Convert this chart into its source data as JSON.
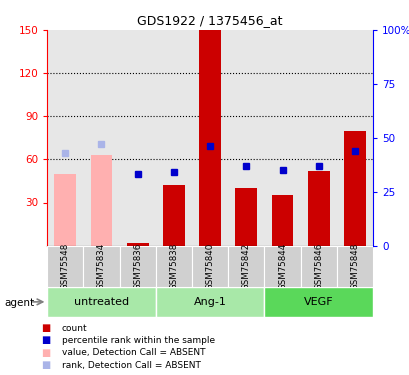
{
  "title": "GDS1922 / 1375456_at",
  "samples": [
    "GSM75548",
    "GSM75834",
    "GSM75836",
    "GSM75838",
    "GSM75840",
    "GSM75842",
    "GSM75844",
    "GSM75846",
    "GSM75848"
  ],
  "bar_values": [
    50,
    63,
    2,
    42,
    150,
    40,
    35,
    52,
    80
  ],
  "bar_absent": [
    true,
    true,
    false,
    false,
    false,
    false,
    false,
    false,
    false
  ],
  "rank_values": [
    43,
    47,
    33,
    34,
    46,
    37,
    35,
    37,
    44
  ],
  "rank_absent": [
    true,
    true,
    false,
    false,
    false,
    false,
    false,
    false,
    false
  ],
  "ylim_left": [
    0,
    150
  ],
  "ylim_right": [
    0,
    100
  ],
  "yticks_left": [
    30,
    60,
    90,
    120,
    150
  ],
  "yticks_right": [
    0,
    25,
    50,
    75,
    100
  ],
  "ytick_right_labels": [
    "0",
    "25",
    "50",
    "75",
    "100%"
  ],
  "bar_color_normal": "#cc0000",
  "bar_color_absent": "#ffb0b0",
  "rank_color_normal": "#0000cc",
  "rank_color_absent": "#aab4e8",
  "sample_bg_color": "#d0d0d0",
  "agent_colors": [
    "#a8e8a8",
    "#a8e8a8",
    "#5ad85a"
  ],
  "agent_groups": [
    "untreated",
    "Ang-1",
    "VEGF"
  ],
  "agent_group_sizes": [
    3,
    3,
    3
  ]
}
